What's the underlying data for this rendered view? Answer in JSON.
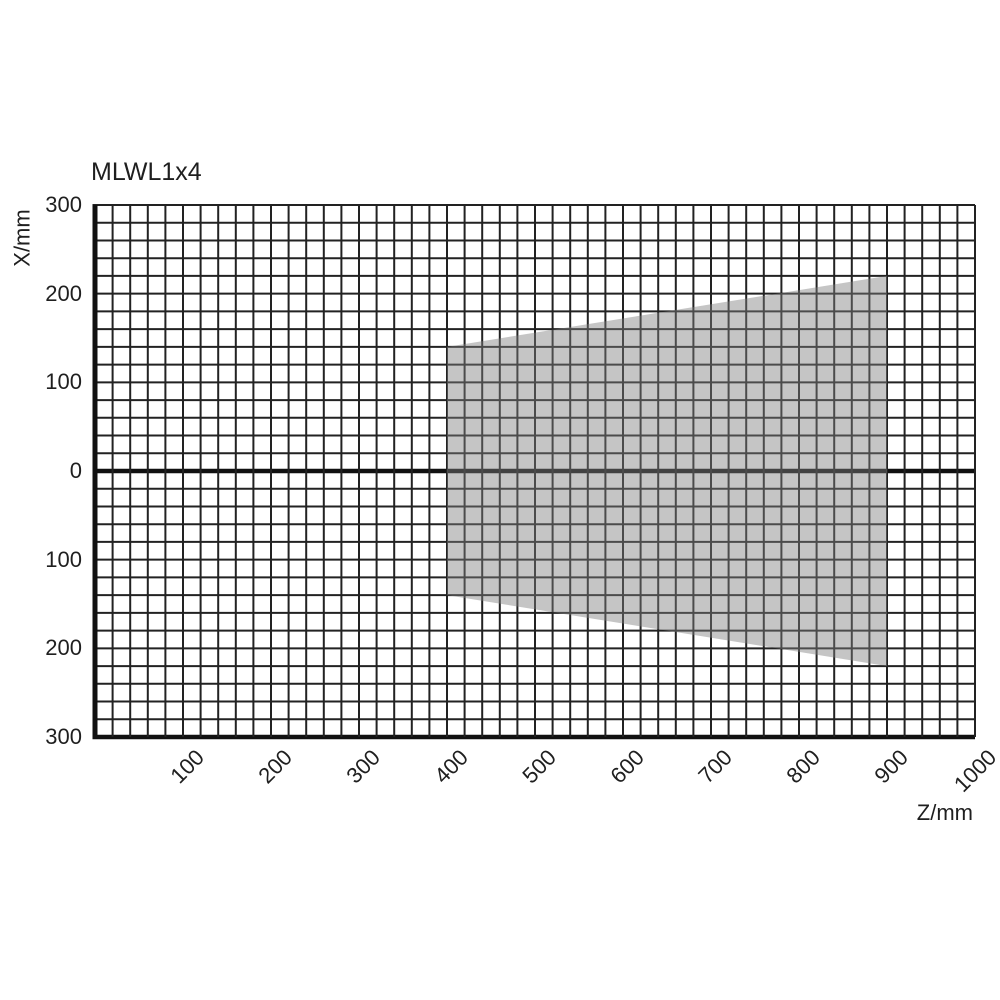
{
  "chart_data": {
    "type": "area",
    "title": "MLWL1x4",
    "xlabel": "Z/mm",
    "ylabel": "X/mm",
    "xlim": [
      0,
      1000
    ],
    "ylim": [
      -300,
      300
    ],
    "grid": true,
    "grid_step_mm": 20,
    "x_tick_values": [
      100,
      200,
      300,
      400,
      500,
      600,
      700,
      800,
      900,
      1000
    ],
    "x_tick_labels": [
      "100",
      "200",
      "300",
      "400",
      "500",
      "600",
      "700",
      "800",
      "900",
      "1000"
    ],
    "y_tick_values": [
      300,
      200,
      100,
      0,
      -100,
      -200,
      -300
    ],
    "y_tick_labels": [
      "300",
      "200",
      "100",
      "0",
      "100",
      "200",
      "300"
    ],
    "detection_zone": {
      "description": "shaded trapezoidal working range",
      "z_near_mm": 400,
      "z_far_mm": 900,
      "x_half_width_near_mm": 140,
      "x_half_width_far_mm": 220,
      "polygon_z_x": [
        [
          400,
          140
        ],
        [
          900,
          220
        ],
        [
          900,
          -220
        ],
        [
          400,
          -140
        ]
      ],
      "fill_color": "#7f7f7f",
      "fill_opacity": 0.45
    },
    "colors": {
      "background": "#ffffff",
      "grid_line": "#222222",
      "axis_line": "#111111",
      "text": "#1f1f1f"
    },
    "legend": null
  }
}
